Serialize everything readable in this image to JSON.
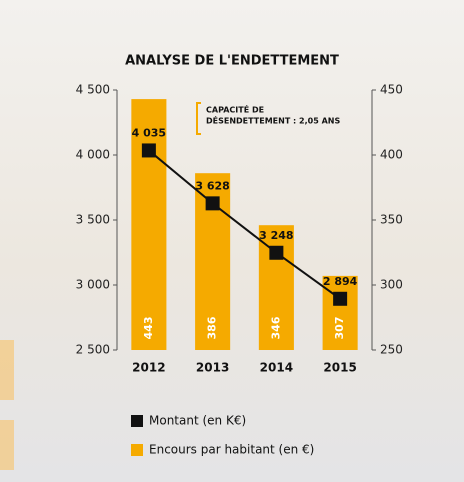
{
  "chart_data": {
    "type": "bar",
    "title": "ANALYSE DE L'ENDETTEMENT",
    "annotation": [
      "CAPACITÉ DE",
      "DÉSENDETTEMENT : 2,05 ANS"
    ],
    "categories": [
      "2012",
      "2013",
      "2014",
      "2015"
    ],
    "series": [
      {
        "name": "Montant (en K€)",
        "type": "line",
        "color": "#111111",
        "axis": "y",
        "values": [
          4035,
          3628,
          3248,
          2894
        ],
        "value_labels": [
          "4 035",
          "3 628",
          "3 248",
          "2 894"
        ]
      },
      {
        "name": "Encours par habitant (en €)",
        "type": "bar",
        "color": "#f5aa00",
        "axis": "y2",
        "values": [
          443,
          386,
          346,
          307
        ]
      }
    ],
    "ylim": [
      2500,
      4500
    ],
    "yticks": [
      {
        "value": 2500,
        "label": "2 500"
      },
      {
        "value": 3000,
        "label": "3 000"
      },
      {
        "value": 3500,
        "label": "3 500"
      },
      {
        "value": 4000,
        "label": "4 000"
      },
      {
        "value": 4500,
        "label": "4 500"
      }
    ],
    "y2lim": [
      250,
      450
    ],
    "y2ticks": [
      250,
      300,
      350,
      400,
      450
    ]
  }
}
